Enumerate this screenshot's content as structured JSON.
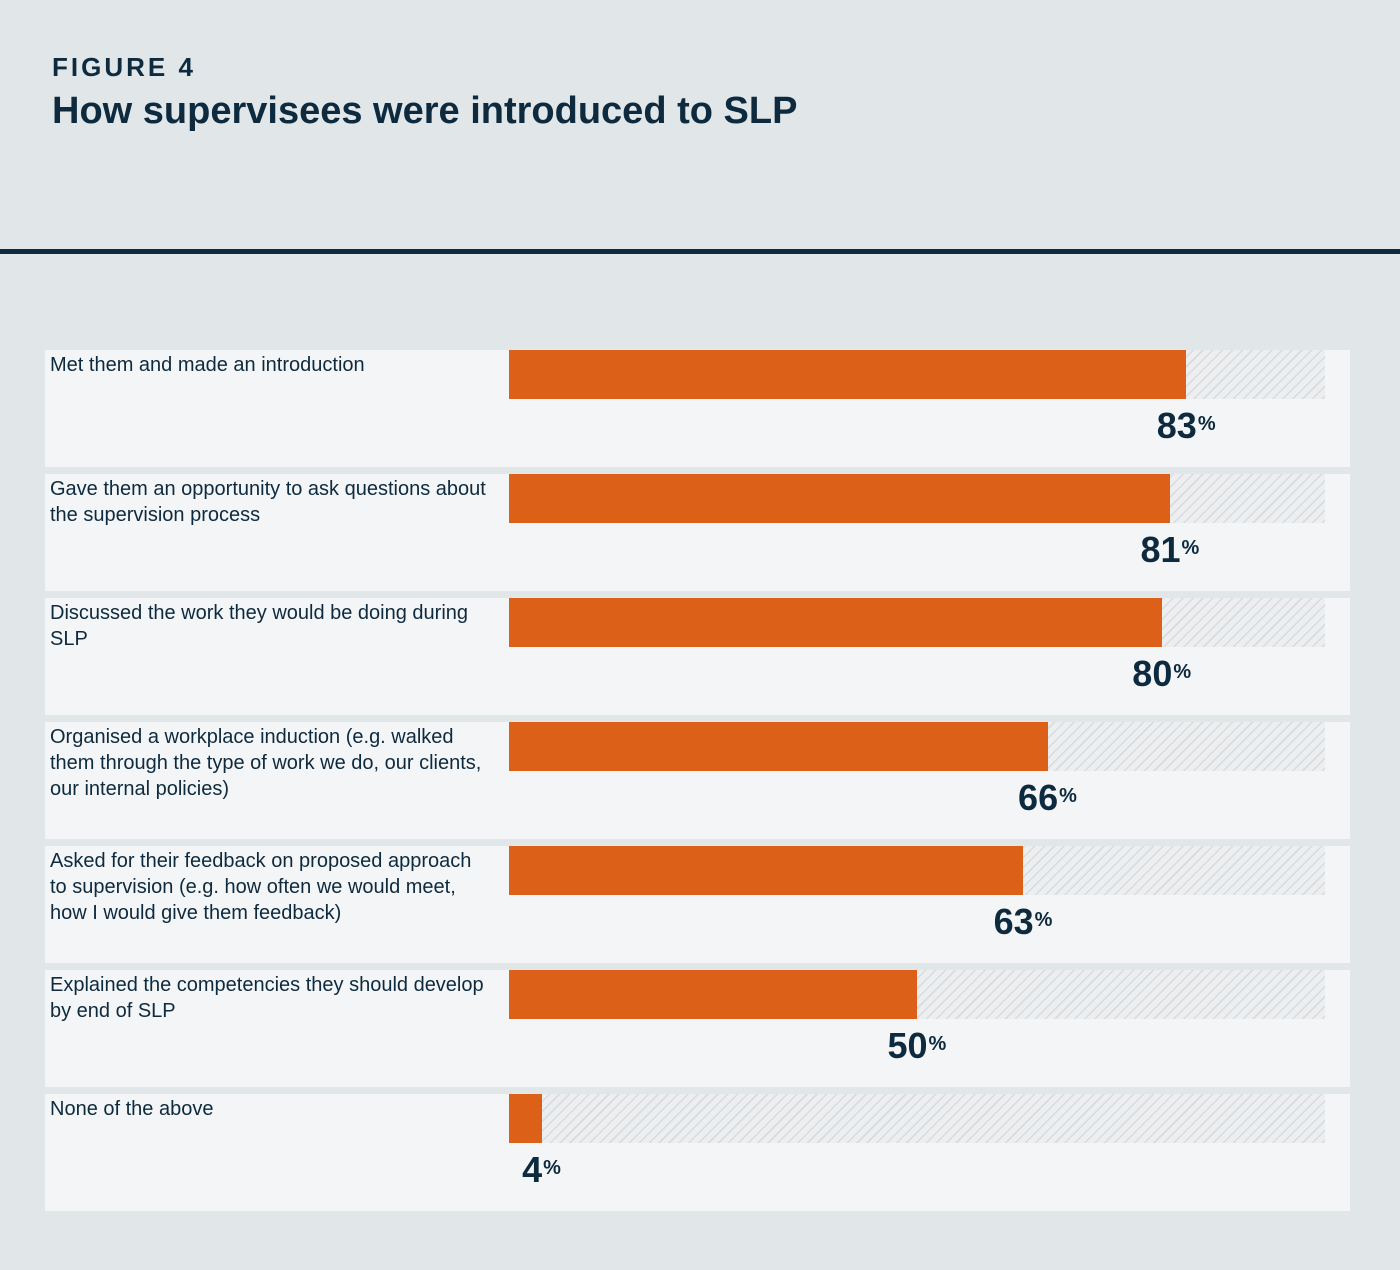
{
  "figure": {
    "label": "FIGURE 4",
    "title": "How supervisees were introduced to SLP"
  },
  "colors": {
    "background": "#e1e6e9",
    "panel": "#f4f5f7",
    "bar": "#dd6019",
    "text": "#0d2a3e"
  },
  "chart_data": {
    "type": "bar",
    "orientation": "horizontal",
    "title": "How supervisees were introduced to SLP",
    "xlabel": "",
    "ylabel": "",
    "xlim": [
      0,
      100
    ],
    "unit": "%",
    "categories": [
      "Met them and made an introduction",
      "Gave them an opportunity to ask questions about the supervision process",
      "Discussed the work they would be doing during SLP",
      "Organised a workplace induction (e.g. walked them through the type of work we do, our clients, our internal policies)",
      "Asked for their feedback on proposed approach to supervision (e.g. how often we would meet, how I would give them feedback)",
      "Explained the competencies they should develop by end of SLP",
      "None of the above"
    ],
    "values": [
      83,
      81,
      80,
      66,
      63,
      50,
      4
    ]
  }
}
